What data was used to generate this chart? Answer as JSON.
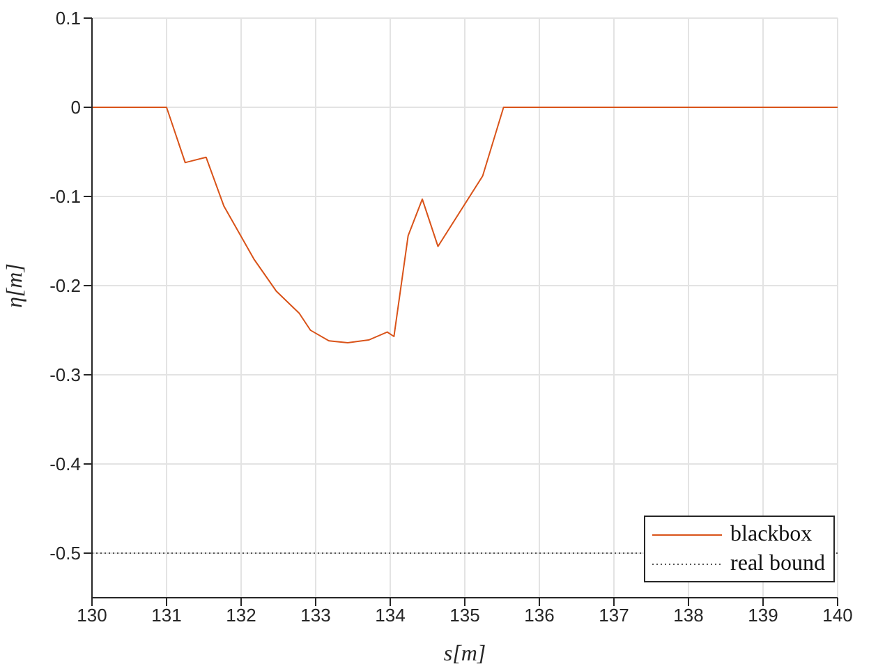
{
  "chart_data": {
    "type": "line",
    "xlabel": "s[m]",
    "ylabel": "η[m]",
    "xlim": [
      130,
      140
    ],
    "xticks": [
      130,
      131,
      132,
      133,
      134,
      135,
      136,
      137,
      138,
      139,
      140
    ],
    "ylim": [
      -0.55,
      0.1
    ],
    "yticks": [
      -0.5,
      -0.4,
      -0.3,
      -0.2,
      -0.1,
      0,
      0.1
    ],
    "grid": true,
    "legend": "bottom right",
    "marker": "none",
    "series": [
      {
        "name": "blackbox",
        "color": "#d95319",
        "line_style": "solid",
        "x": [
          130,
          131.0,
          131.25,
          131.53,
          131.77,
          132.17,
          132.47,
          132.78,
          132.93,
          133.18,
          133.43,
          133.71,
          133.96,
          134.05,
          134.24,
          134.43,
          134.64,
          135.24,
          135.52,
          140
        ],
        "values": [
          0,
          0,
          -0.062,
          -0.056,
          -0.111,
          -0.17,
          -0.206,
          -0.231,
          -0.25,
          -0.262,
          -0.264,
          -0.261,
          -0.252,
          -0.257,
          -0.144,
          -0.103,
          -0.156,
          -0.077,
          0,
          0
        ]
      },
      {
        "name": "real bound",
        "color": "#555555",
        "line_style": "dotted",
        "x": [
          130,
          140
        ],
        "values": [
          -0.5,
          -0.5
        ]
      }
    ]
  }
}
